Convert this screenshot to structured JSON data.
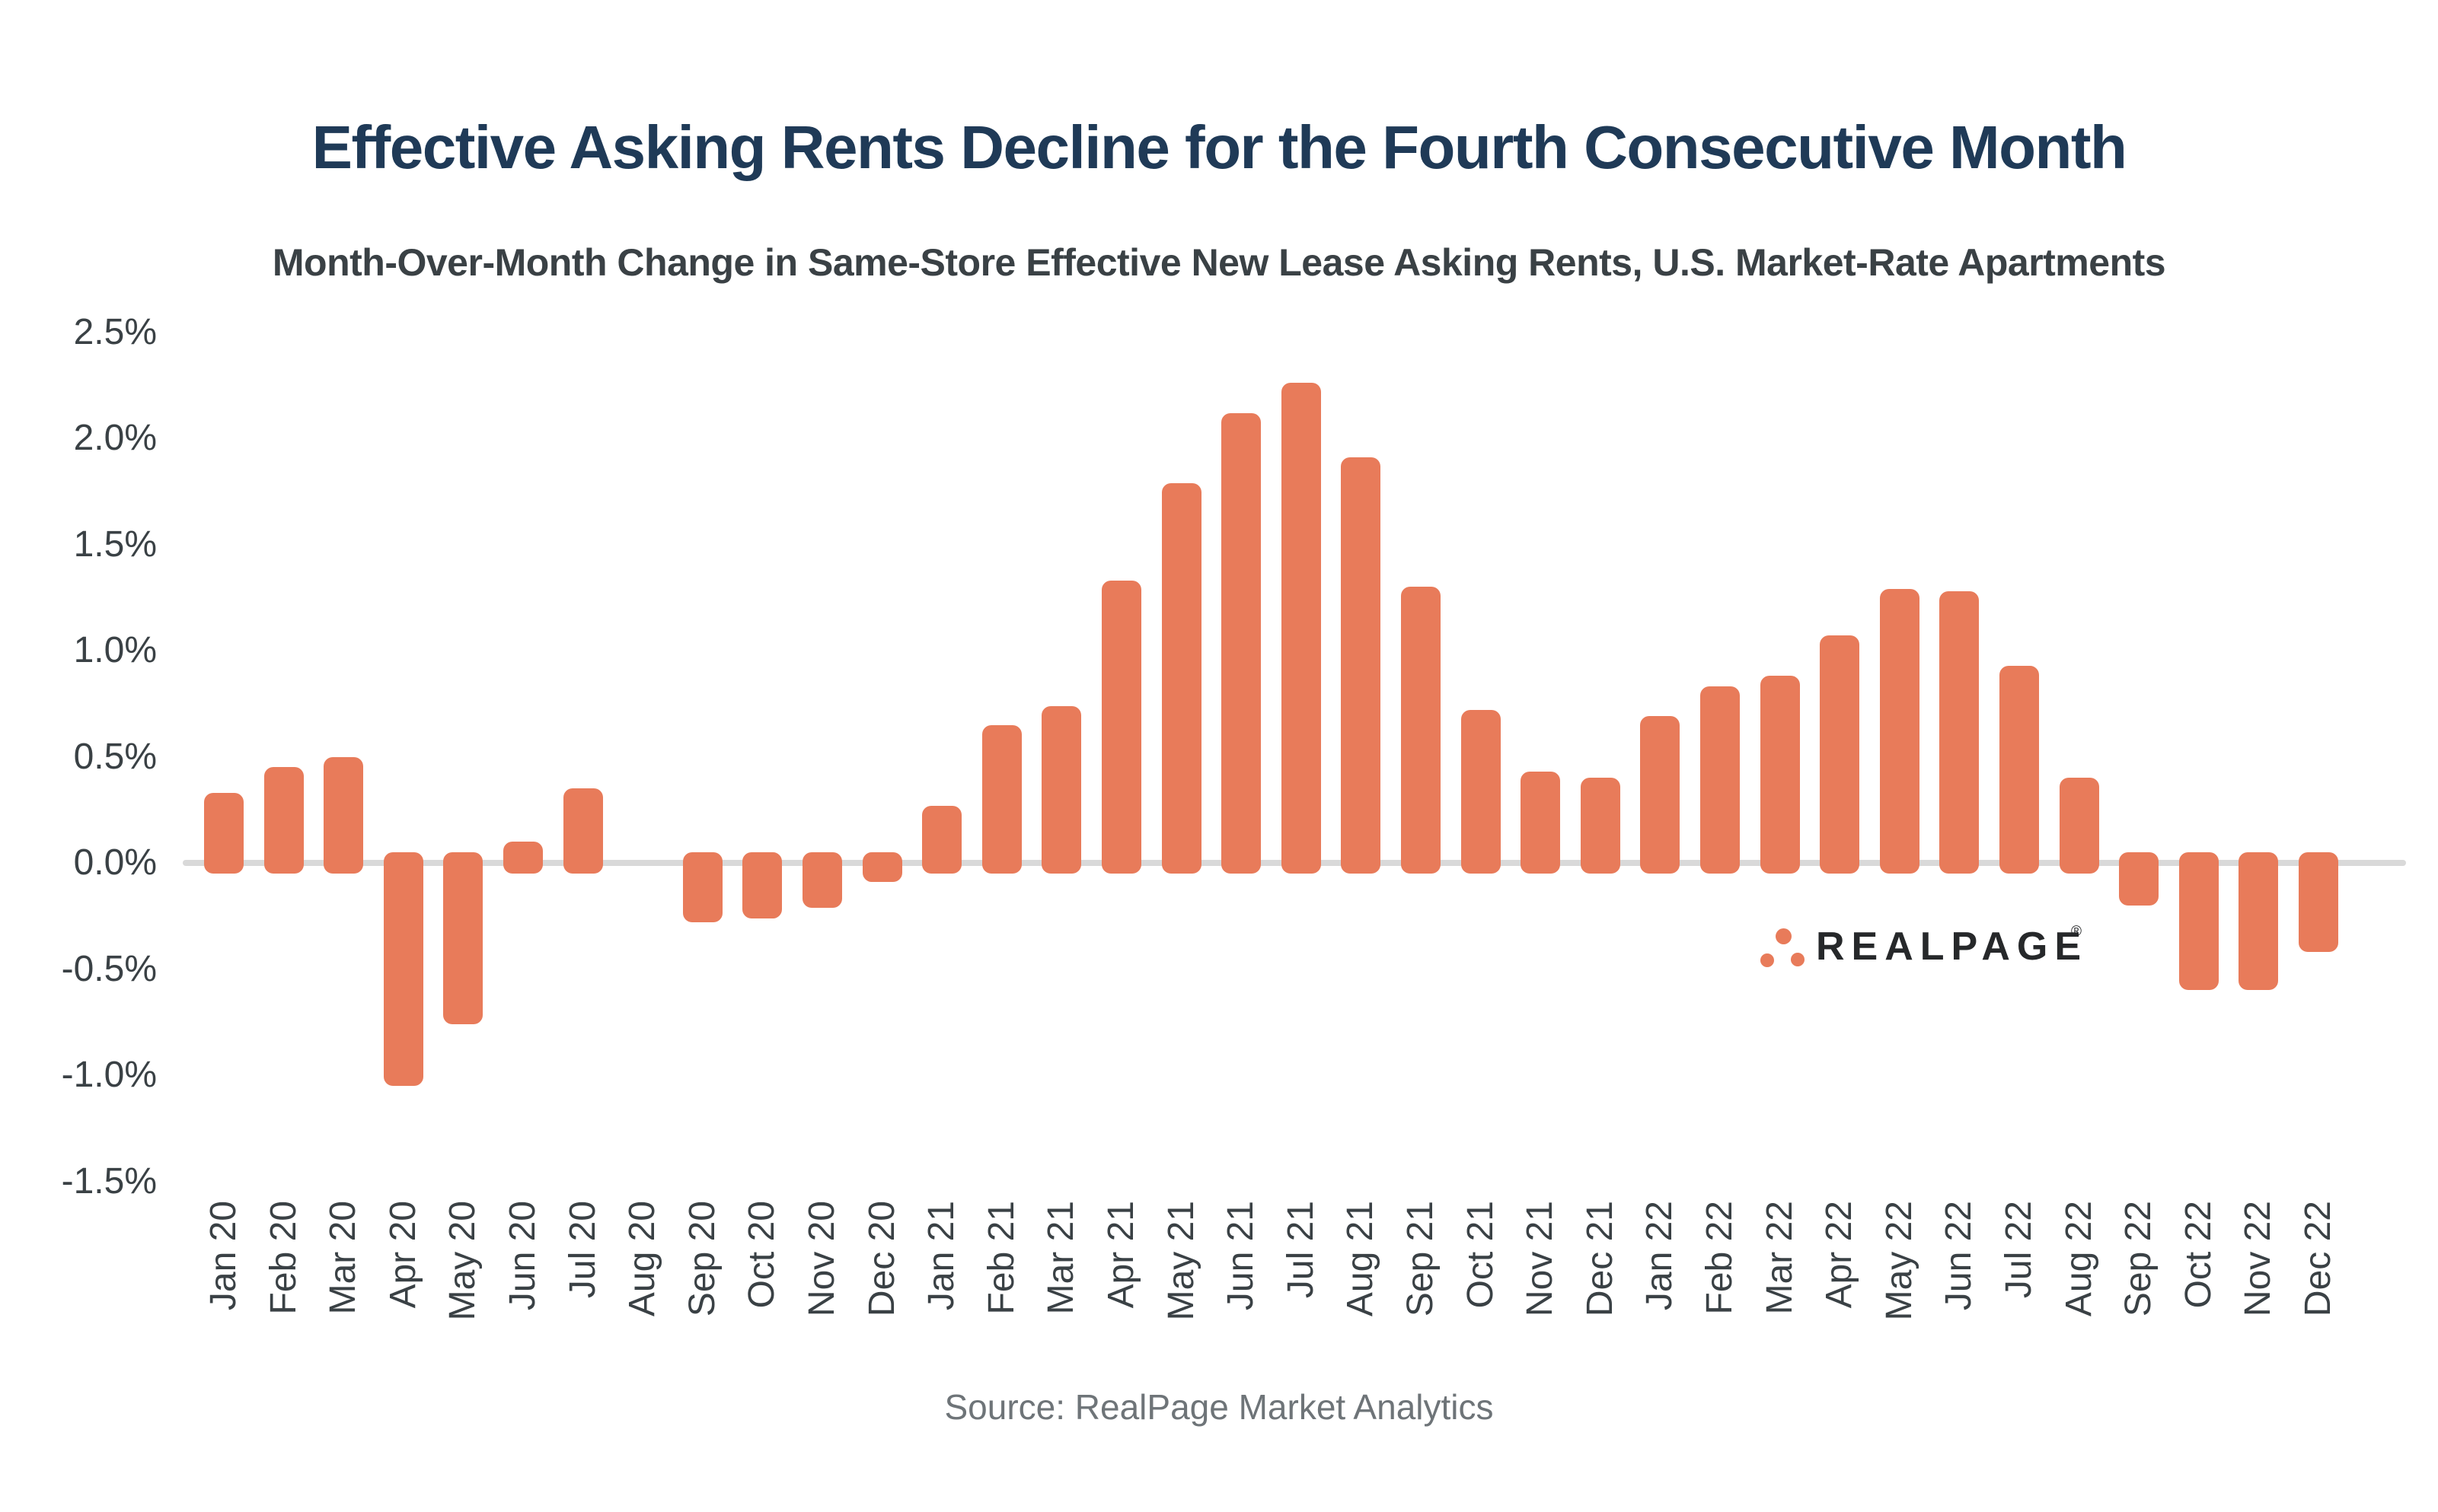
{
  "title": "Effective Asking Rents Decline for the Fourth Consecutive Month",
  "subtitle": "Month-Over-Month Change in Same-Store Effective New Lease Asking Rents, U.S. Market-Rate Apartments",
  "source": "Source: RealPage Market Analytics",
  "logo": {
    "text": "REALPAGE",
    "registered": "®"
  },
  "colors": {
    "bar": "#E87B5A",
    "title": "#1F3A57",
    "label": "#3A4145",
    "source": "#6E7478",
    "axis": "#D9D9D9",
    "logo_text": "#26282A",
    "logo_dots": "#E87B5A"
  },
  "chart_data": {
    "type": "bar",
    "title": "Effective Asking Rents Decline for the Fourth Consecutive Month",
    "subtitle": "Month-Over-Month Change in Same-Store Effective New Lease Asking Rents, U.S. Market-Rate Apartments",
    "unit": "percent month-over-month",
    "categories": [
      "Jan 20",
      "Feb 20",
      "Mar 20",
      "Apr 20",
      "May 20",
      "Jun 20",
      "Jul 20",
      "Aug 20",
      "Sep 20",
      "Oct 20",
      "Nov 20",
      "Dec 20",
      "Jan 21",
      "Feb 21",
      "Mar 21",
      "Apr 21",
      "May 21",
      "Jun 21",
      "Jul 21",
      "Aug 21",
      "Sep 21",
      "Oct 21",
      "Nov 21",
      "Dec 21",
      "Jan 22",
      "Feb 22",
      "Mar 22",
      "Apr 22",
      "May 22",
      "Jun 22",
      "Jul 22",
      "Aug 22",
      "Sep 22",
      "Oct 22",
      "Nov 22",
      "Dec 22"
    ],
    "values": [
      0.33,
      0.45,
      0.5,
      -1.05,
      -0.76,
      0.1,
      0.35,
      0.0,
      -0.28,
      -0.26,
      -0.21,
      -0.09,
      0.27,
      0.65,
      0.74,
      1.33,
      1.79,
      2.12,
      2.26,
      1.91,
      1.3,
      0.72,
      0.43,
      0.4,
      0.69,
      0.83,
      0.88,
      1.07,
      1.29,
      1.28,
      0.93,
      0.4,
      -0.2,
      -0.6,
      -0.6,
      -0.42
    ],
    "y_ticks": [
      {
        "label": "2.5%",
        "value": 2.5
      },
      {
        "label": "2.0%",
        "value": 2.0
      },
      {
        "label": "1.5%",
        "value": 1.5
      },
      {
        "label": "1.0%",
        "value": 1.0
      },
      {
        "label": "0.5%",
        "value": 0.5
      },
      {
        "label": "0.0%",
        "value": 0.0
      },
      {
        "label": "-0.5%",
        "value": -0.5
      },
      {
        "label": "-1.0%",
        "value": -1.0
      },
      {
        "label": "-1.5%",
        "value": -1.5
      }
    ],
    "ylim": [
      -1.5,
      2.5
    ],
    "grid": "zero-line-only",
    "legend": "none"
  }
}
